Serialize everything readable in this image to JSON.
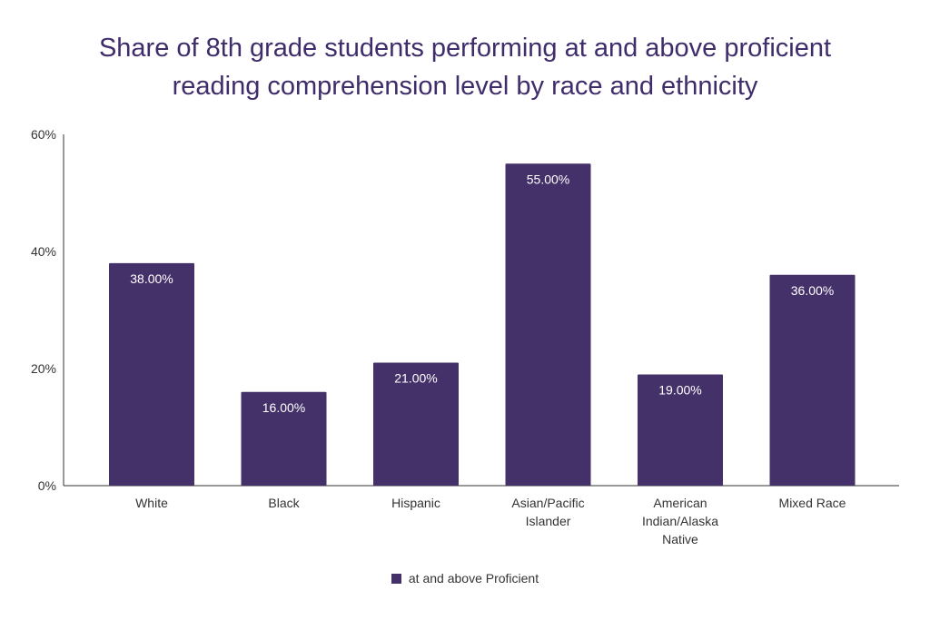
{
  "chart_data": {
    "type": "bar",
    "title": [
      "Share of 8th grade students performing at and above proficient",
      "reading comprehension level by race and ethnicity"
    ],
    "categories": [
      [
        "White"
      ],
      [
        "Black"
      ],
      [
        "Hispanic"
      ],
      [
        "Asian/Pacific",
        "Islander"
      ],
      [
        "American",
        "Indian/Alaska",
        "Native"
      ],
      [
        "Mixed Race"
      ]
    ],
    "series": [
      {
        "name": "at and above Proficient",
        "values": [
          38,
          16,
          21,
          55,
          19,
          36
        ],
        "labels": [
          "38.00%",
          "16.00%",
          "21.00%",
          "55.00%",
          "19.00%",
          "36.00%"
        ]
      }
    ],
    "yticks": [
      "0%",
      "20%",
      "40%",
      "60%"
    ],
    "ytick_values": [
      0,
      20,
      40,
      60
    ],
    "ylim": [
      0,
      60
    ],
    "xlabel": "",
    "ylabel": "",
    "grid": false,
    "legend_position": "bottom",
    "colors": {
      "bar": "#45316a",
      "title": "#3f2d6b"
    }
  }
}
